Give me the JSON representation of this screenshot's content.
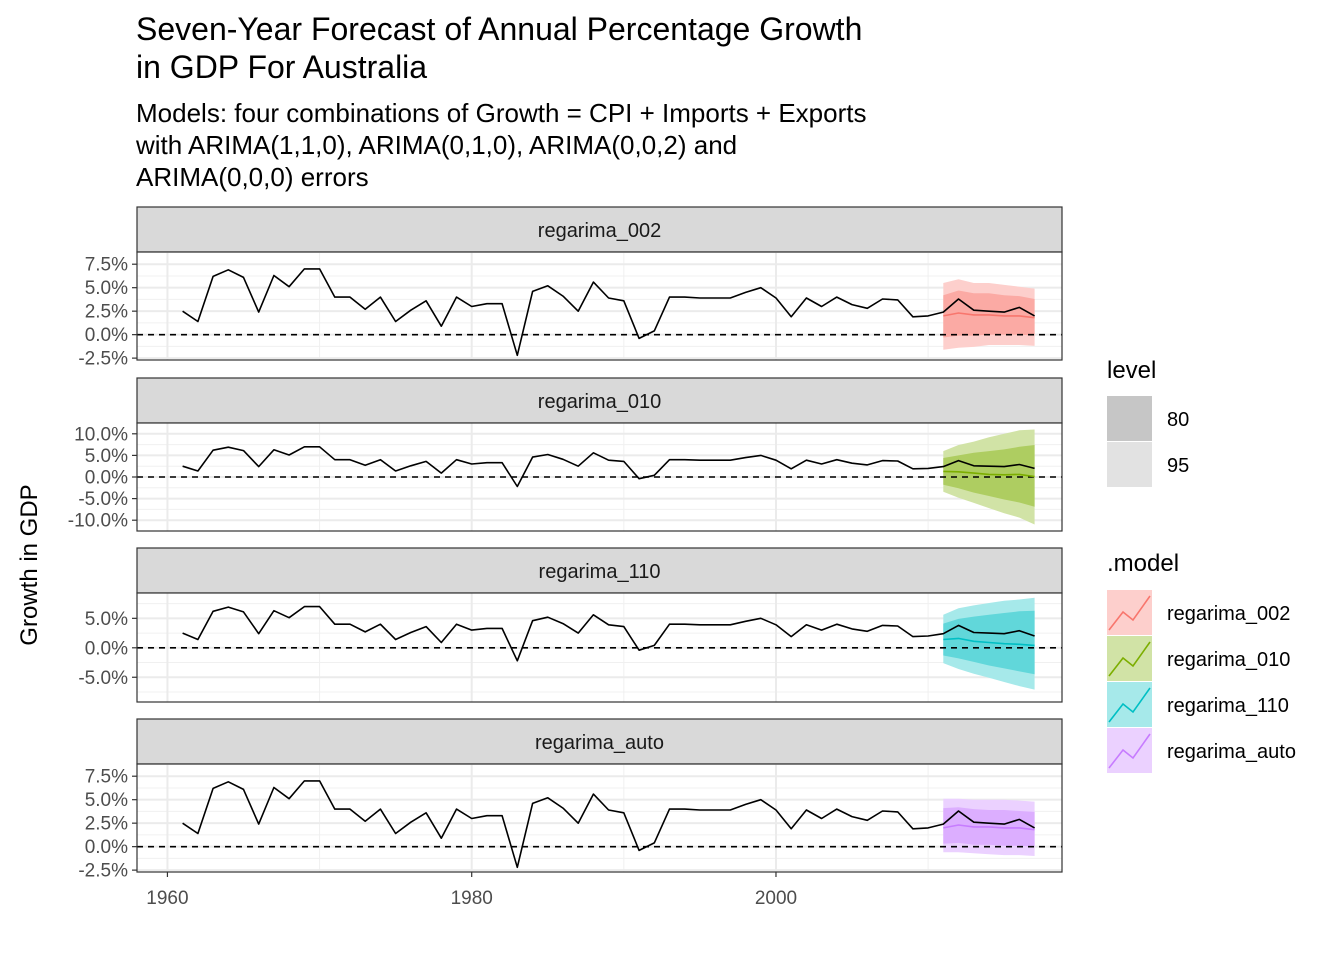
{
  "chart_data": {
    "type": "line",
    "title_lines": [
      "Seven-Year Forecast of Annual Percentage Growth",
      "in GDP For Australia"
    ],
    "subtitle_lines": [
      "Models: four combinations of Growth = CPI + Imports + Exports",
      "with ARIMA(1,1,0), ARIMA(0,1,0), ARIMA(0,0,2) and",
      "ARIMA(0,0,0) errors"
    ],
    "ylabel": "Growth in GDP",
    "xlabel": "",
    "x_ticks": [
      "1960",
      "1980",
      "2000"
    ],
    "x_tick_values": [
      1960,
      1980,
      2000
    ],
    "xlim": [
      1958.0,
      2018.8
    ],
    "grid": true,
    "legend_placement": "right",
    "zero_reference_line": 0,
    "history": {
      "x": [
        1961,
        1962,
        1963,
        1964,
        1965,
        1966,
        1967,
        1968,
        1969,
        1970,
        1971,
        1972,
        1973,
        1974,
        1975,
        1976,
        1977,
        1978,
        1979,
        1980,
        1981,
        1982,
        1983,
        1984,
        1985,
        1986,
        1987,
        1988,
        1989,
        1990,
        1991,
        1992,
        1993,
        1994,
        1995,
        1996,
        1997,
        1998,
        1999,
        2000,
        2001,
        2002,
        2003,
        2004,
        2005,
        2006,
        2007,
        2008,
        2009,
        2010,
        2011
      ],
      "y": [
        2.5,
        1.4,
        6.2,
        6.9,
        6.1,
        2.4,
        6.3,
        5.1,
        7.0,
        7.0,
        4.0,
        4.0,
        2.7,
        4.0,
        1.4,
        2.6,
        3.6,
        0.9,
        4.0,
        3.0,
        3.3,
        3.3,
        -2.2,
        4.6,
        5.2,
        4.1,
        2.5,
        5.6,
        3.9,
        3.6,
        -0.4,
        0.4,
        4.0,
        4.0,
        3.9,
        3.9,
        3.9,
        4.5,
        5.0,
        3.9,
        1.9,
        3.9,
        3.0,
        4.0,
        3.2,
        2.8,
        3.8,
        3.7,
        1.9,
        2.0,
        2.4
      ]
    },
    "forecast_x": [
      2011,
      2012,
      2013,
      2014,
      2015,
      2016,
      2017
    ],
    "legend_level": {
      "title": "level",
      "items": [
        "80",
        "95"
      ]
    },
    "legend_model": {
      "title": ".model",
      "items": [
        "regarima_002",
        "regarima_010",
        "regarima_110",
        "regarima_auto"
      ]
    },
    "panels": [
      {
        "name": "regarima_002",
        "color": "#F8766D",
        "ylim": [
          -2.7,
          8.8
        ],
        "y_ticks": [
          -2.5,
          0,
          2.5,
          5,
          7.5
        ],
        "y_tick_labels": [
          "-2.5%",
          "0.0%",
          "2.5%",
          "5.0%",
          "7.5%"
        ],
        "actual": [
          2.4,
          3.8,
          2.6,
          2.5,
          2.4,
          2.9,
          2.0
        ],
        "mean": [
          2.0,
          2.3,
          2.1,
          2.1,
          2.0,
          2.0,
          1.8
        ],
        "lo80": [
          -0.3,
          -0.1,
          -0.1,
          0.0,
          0.0,
          0.0,
          -0.1
        ],
        "hi80": [
          4.2,
          4.7,
          4.4,
          4.4,
          4.2,
          4.1,
          3.8
        ],
        "lo95": [
          -1.6,
          -1.4,
          -1.3,
          -1.1,
          -1.1,
          -1.1,
          -1.2
        ],
        "hi95": [
          5.5,
          5.9,
          5.5,
          5.5,
          5.3,
          5.1,
          4.9
        ]
      },
      {
        "name": "regarima_010",
        "color": "#7CAE00",
        "ylim": [
          -12.5,
          12.5
        ],
        "y_ticks": [
          -10,
          -5,
          0,
          5,
          10
        ],
        "y_tick_labels": [
          "-10.0%",
          "-5.0%",
          "0.0%",
          "5.0%",
          "10.0%"
        ],
        "actual": [
          2.4,
          3.8,
          2.6,
          2.5,
          2.4,
          2.9,
          2.0
        ],
        "mean": [
          1.3,
          1.2,
          0.9,
          0.6,
          0.5,
          0.6,
          0.1
        ],
        "lo80": [
          -1.8,
          -2.6,
          -3.6,
          -4.4,
          -5.2,
          -5.9,
          -6.9
        ],
        "hi80": [
          4.4,
          5.0,
          5.6,
          6.0,
          6.4,
          7.0,
          7.4
        ],
        "lo95": [
          -3.4,
          -4.8,
          -6.0,
          -7.2,
          -8.4,
          -9.4,
          -11.0
        ],
        "hi95": [
          6.0,
          7.4,
          8.2,
          9.2,
          10.0,
          10.8,
          11.0
        ]
      },
      {
        "name": "regarima_110",
        "color": "#00BFC4",
        "ylim": [
          -9.2,
          9.3
        ],
        "y_ticks": [
          -5,
          0,
          5
        ],
        "y_tick_labels": [
          "-5.0%",
          "0.0%",
          "5.0%"
        ],
        "actual": [
          2.4,
          3.8,
          2.6,
          2.5,
          2.4,
          2.9,
          2.0
        ],
        "mean": [
          1.4,
          1.6,
          1.1,
          0.9,
          0.7,
          0.6,
          0.4
        ],
        "lo80": [
          -1.3,
          -1.8,
          -2.4,
          -3.0,
          -3.5,
          -4.0,
          -4.5
        ],
        "hi80": [
          4.1,
          4.9,
          5.3,
          5.6,
          5.9,
          6.2,
          6.3
        ],
        "lo95": [
          -2.6,
          -3.6,
          -4.4,
          -5.1,
          -5.8,
          -6.5,
          -7.1
        ],
        "hi95": [
          5.6,
          6.7,
          7.2,
          7.6,
          8.0,
          8.2,
          8.5
        ]
      },
      {
        "name": "regarima_auto",
        "color": "#C77CFF",
        "ylim": [
          -2.7,
          8.8
        ],
        "y_ticks": [
          -2.5,
          0,
          2.5,
          5,
          7.5
        ],
        "y_tick_labels": [
          "-2.5%",
          "0.0%",
          "2.5%",
          "5.0%",
          "7.5%"
        ],
        "actual": [
          2.4,
          3.8,
          2.6,
          2.5,
          2.4,
          2.9,
          2.0
        ],
        "mean": [
          2.0,
          2.3,
          2.1,
          2.1,
          2.0,
          2.0,
          1.8
        ],
        "lo80": [
          0.3,
          0.4,
          0.2,
          0.2,
          0.1,
          0.1,
          0.0
        ],
        "hi80": [
          4.1,
          4.2,
          4.0,
          3.9,
          3.9,
          3.8,
          3.7
        ],
        "lo95": [
          -0.6,
          -0.6,
          -0.7,
          -0.8,
          -0.9,
          -0.9,
          -1.0
        ],
        "hi95": [
          5.1,
          5.1,
          5.0,
          5.0,
          5.0,
          4.9,
          4.8
        ]
      }
    ]
  }
}
